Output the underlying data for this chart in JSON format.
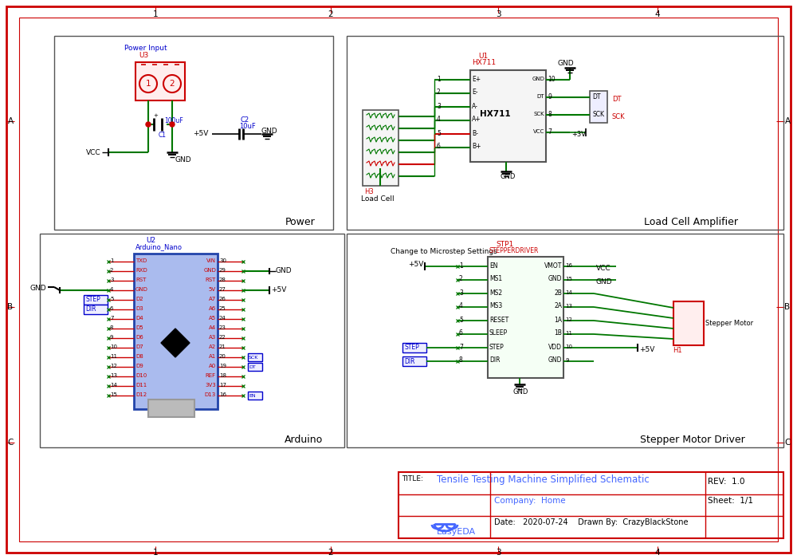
{
  "bg_color": "#ffffff",
  "border_color": "#cc0000",
  "green_color": "#007700",
  "blue_color": "#0000cc",
  "blue_light": "#4466ff",
  "dark_red": "#cc0000",
  "black": "#000000",
  "dgray": "#555555",
  "lgray": "#bbbbbb",
  "mgray": "#999999",
  "title_text": "Tensile Testing Machine Simplified Schematic",
  "rev_text": "REV:  1.0",
  "company_text": "Company:  Home",
  "sheet_text": "Sheet:  1/1",
  "date_text": "Date:   2020-07-24    Drawn By:  CrazyBlackStone",
  "fig_width": 10.0,
  "fig_height": 7.01,
  "dpi": 100
}
